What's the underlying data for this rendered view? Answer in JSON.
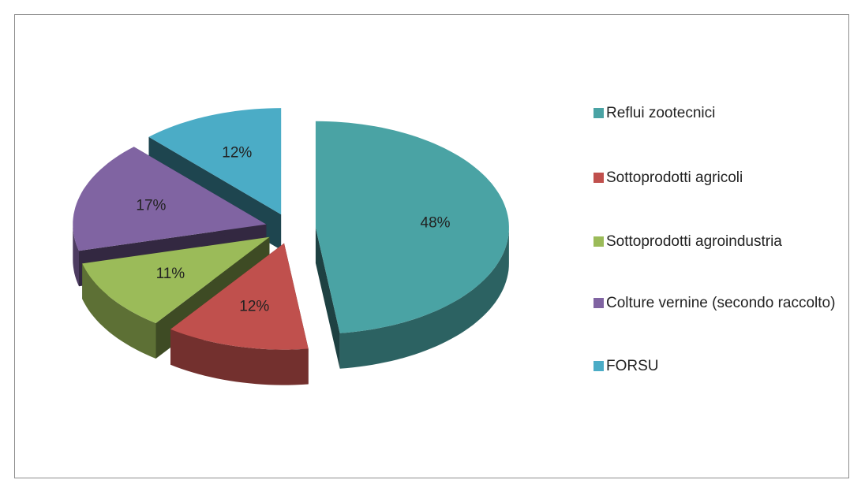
{
  "chart_data": {
    "type": "pie",
    "categories": [
      "Reflui zootecnici",
      "Sottoprodotti agricoli",
      "Sottoprodotti agroindustria",
      "Colture vernine (secondo raccolto)",
      "FORSU"
    ],
    "values": [
      48,
      12,
      11,
      17,
      12
    ],
    "value_labels": [
      "48%",
      "12%",
      "11%",
      "17%",
      "12%"
    ],
    "colors": [
      "#4aa3a4",
      "#c0504d",
      "#9bbb59",
      "#8064a2",
      "#4bacc6"
    ],
    "legend": "right"
  }
}
